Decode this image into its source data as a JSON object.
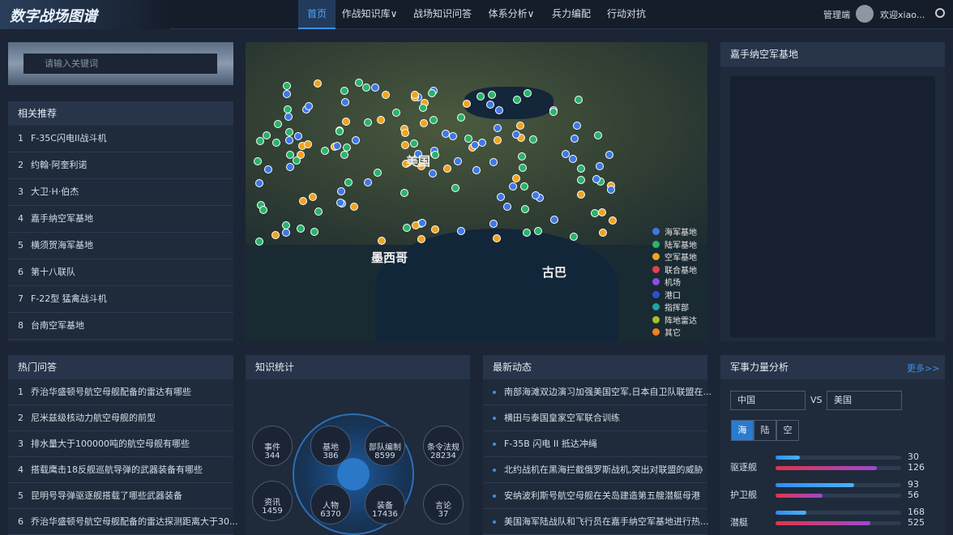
{
  "header": {
    "title": "数字战场图谱",
    "nav": [
      "首页",
      "作战知识库∨",
      "战场知识问答",
      "体系分析∨",
      "兵力编配",
      "行动对抗"
    ],
    "admin": "管理端",
    "user": "欢迎xiao..."
  },
  "search": {
    "placeholder": "请输入关键词"
  },
  "related": {
    "title": "相关推荐",
    "items": [
      {
        "rank": 1,
        "name": "F-35C闪电II战斗机"
      },
      {
        "rank": 2,
        "name": "约翰·阿奎利诺"
      },
      {
        "rank": 3,
        "name": "大卫·H·伯杰"
      },
      {
        "rank": 4,
        "name": "嘉手纳空军基地"
      },
      {
        "rank": 5,
        "name": "横须贺海军基地"
      },
      {
        "rank": 6,
        "name": "第十八联队"
      },
      {
        "rank": 7,
        "name": "F-22型 猛禽战斗机"
      },
      {
        "rank": 8,
        "name": "台南空军基地"
      }
    ]
  },
  "map": {
    "labels": [
      "美国",
      "墨西哥",
      "古巴"
    ],
    "legend": [
      "海军基地",
      "陆军基地",
      "空军基地",
      "联合基地",
      "机场",
      "港口",
      "指挥部",
      "阵地雷达",
      "其它"
    ]
  },
  "detail": {
    "title": "嘉手纳空军基地"
  },
  "hot_qa": {
    "title": "热门问答",
    "items": [
      {
        "rank": 1,
        "text": "乔治华盛顿号航空母舰配备的雷达有哪些"
      },
      {
        "rank": 2,
        "text": "尼米兹级核动力航空母舰的前型"
      },
      {
        "rank": 3,
        "text": "排水量大于100000吨的航空母舰有哪些"
      },
      {
        "rank": 4,
        "text": "搭载鹰击18反舰巡航导弹的武器装备有哪些"
      },
      {
        "rank": 5,
        "text": "昆明号导弹驱逐舰搭载了哪些武器装备"
      },
      {
        "rank": 6,
        "text": "乔治华盛顿号航空母舰配备的雷达探测距离大于30..."
      }
    ]
  },
  "stats": {
    "title": "知识统计",
    "nodes": [
      {
        "label": "事件",
        "count": 344
      },
      {
        "label": "基地",
        "count": 386
      },
      {
        "label": "部队编制",
        "count": 8599
      },
      {
        "label": "条令法规",
        "count": 28234
      },
      {
        "label": "资讯",
        "count": 1459
      },
      {
        "label": "人物",
        "count": 6370
      },
      {
        "label": "装备",
        "count": 17436
      },
      {
        "label": "言论",
        "count": 37
      }
    ]
  },
  "news": {
    "title": "最新动态",
    "items": [
      "南部海滩双边演习加强美国空军,日本自卫队联盟在...",
      "横田与泰国皇家空军联合训练",
      "F-35B 闪电 II 抵达冲绳",
      "北约战机在黑海拦截俄罗斯战机,突出对联盟的威胁",
      "安纳波利斯号航空母舰在关岛建造第五艘潜艇母港",
      "美国海军陆战队和飞行员在嘉手纳空军基地进行热..."
    ]
  },
  "force": {
    "title": "军事力量分析",
    "more": "更多>>",
    "left": "中国",
    "vs": "VS",
    "right": "美国",
    "tabs": [
      "海",
      "陆",
      "空"
    ],
    "rows": [
      {
        "label": "驱逐舰",
        "values": [
          30,
          126
        ]
      },
      {
        "label": "护卫舰",
        "values": [
          93,
          56
        ]
      },
      {
        "label": "潜艇",
        "values": [
          168,
          525
        ]
      }
    ]
  }
}
